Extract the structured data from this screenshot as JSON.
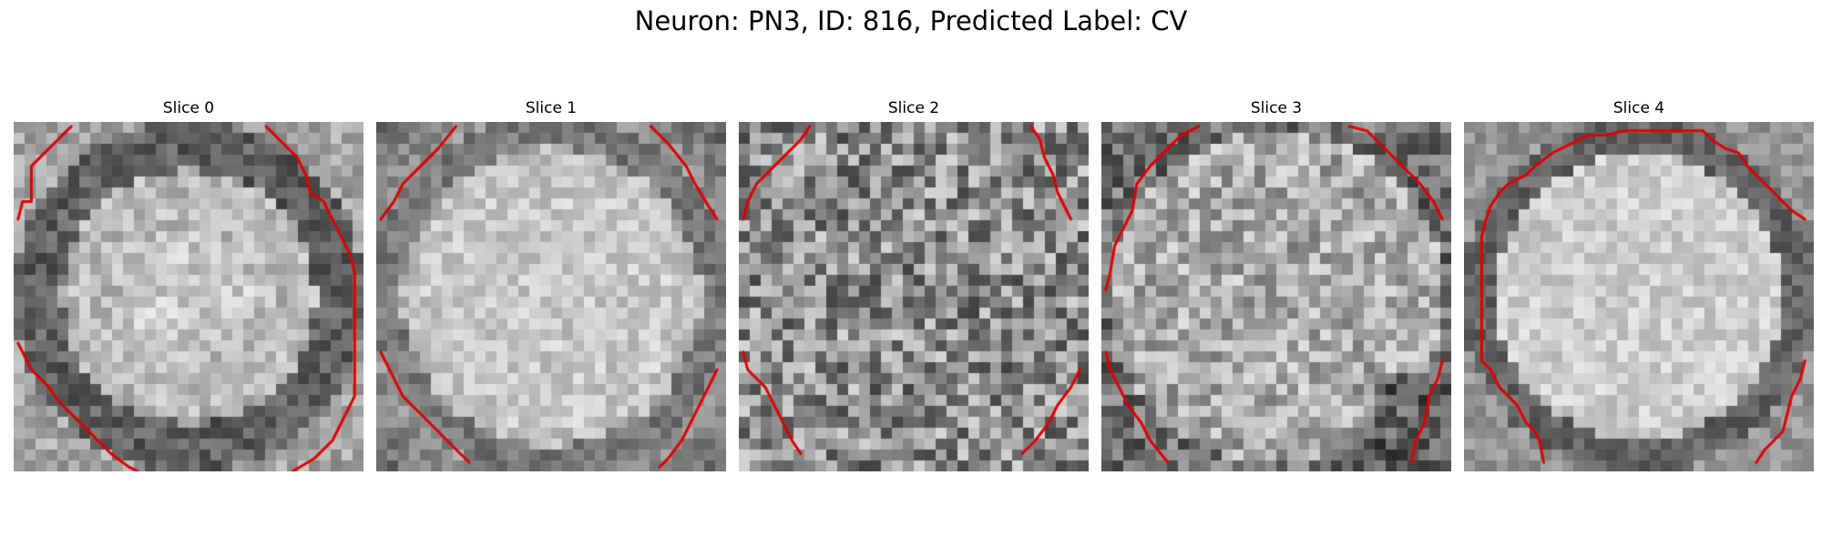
{
  "figure": {
    "title": "Neuron: PN3, ID: 816, Predicted Label: CV"
  },
  "panels": [
    {
      "title": "Slice 0",
      "style": "ring-dark",
      "seed": 11,
      "contour": "corners-four-wide"
    },
    {
      "title": "Slice 1",
      "style": "bright-center",
      "seed": 23,
      "contour": "corners-four"
    },
    {
      "title": "Slice 2",
      "style": "noisy",
      "seed": 37,
      "contour": "corners-four-small"
    },
    {
      "title": "Slice 3",
      "style": "mixed",
      "seed": 51,
      "contour": "corners-three"
    },
    {
      "title": "Slice 4",
      "style": "ring-bright",
      "seed": 67,
      "contour": "octagon"
    }
  ],
  "colors": {
    "contour": "#e00000",
    "background": "#ffffff"
  }
}
